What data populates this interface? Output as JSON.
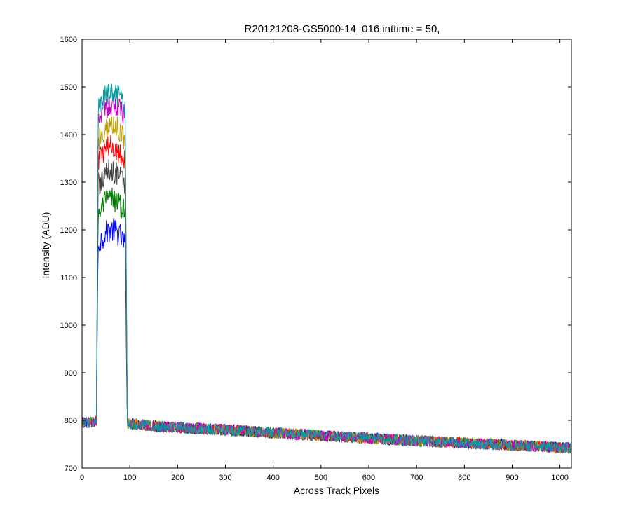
{
  "figure": {
    "background": "#ffffff"
  },
  "chart_data": {
    "type": "line",
    "title": "R20121208-GS5000-14_016 inttime = 50,",
    "xlabel": "Across Track Pixels",
    "ylabel": "Intensity (ADU)",
    "xlim": [
      0,
      1024
    ],
    "ylim": [
      700,
      1600
    ],
    "xticks": [
      0,
      100,
      200,
      300,
      400,
      500,
      600,
      700,
      800,
      900,
      1000
    ],
    "yticks": [
      700,
      800,
      900,
      1000,
      1100,
      1200,
      1300,
      1400,
      1500,
      1600
    ],
    "grid": false,
    "legend": "none",
    "noise_amplitude": 12,
    "profile": {
      "x": [
        0,
        29,
        31,
        33,
        36,
        50,
        70,
        85,
        92,
        94,
        96,
        150,
        300,
        500,
        700,
        900,
        1024
      ],
      "baseline_y": [
        795,
        797,
        800,
        803,
        800,
        800,
        799,
        798,
        797,
        795,
        794,
        788,
        780,
        768,
        757,
        748,
        742
      ]
    },
    "series": [
      {
        "color": "#0000ff",
        "plateau_y": 1185
      },
      {
        "color": "#008000",
        "plateau_y": 1250
      },
      {
        "color": "#404040",
        "plateau_y": 1310
      },
      {
        "color": "#ff0000",
        "plateau_y": 1360
      },
      {
        "color": "#c0a000",
        "plateau_y": 1405
      },
      {
        "color": "#cc00cc",
        "plateau_y": 1450
      },
      {
        "color": "#00a0a0",
        "plateau_y": 1470
      }
    ]
  }
}
